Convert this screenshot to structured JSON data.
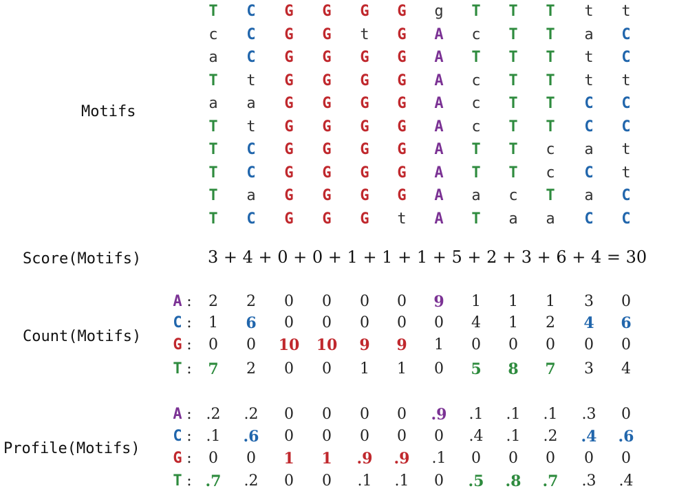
{
  "labels": {
    "motifs": "Motifs",
    "score": "Score(Motifs)",
    "count": "Count(Motifs)",
    "profile": "Profile(Motifs)"
  },
  "colors": {
    "A": "#7b3294",
    "C": "#2166ac",
    "G": "#c0282d",
    "T": "#2e8b3e",
    "plain": "#333333"
  },
  "motifs": [
    [
      "T",
      "C",
      "G",
      "G",
      "G",
      "G",
      "g",
      "T",
      "T",
      "T",
      "t",
      "t"
    ],
    [
      "c",
      "C",
      "G",
      "G",
      "t",
      "G",
      "A",
      "c",
      "T",
      "T",
      "a",
      "C"
    ],
    [
      "a",
      "C",
      "G",
      "G",
      "G",
      "G",
      "A",
      "T",
      "T",
      "T",
      "t",
      "C"
    ],
    [
      "T",
      "t",
      "G",
      "G",
      "G",
      "G",
      "A",
      "c",
      "T",
      "T",
      "t",
      "t"
    ],
    [
      "a",
      "a",
      "G",
      "G",
      "G",
      "G",
      "A",
      "c",
      "T",
      "T",
      "C",
      "C"
    ],
    [
      "T",
      "t",
      "G",
      "G",
      "G",
      "G",
      "A",
      "c",
      "T",
      "T",
      "C",
      "C"
    ],
    [
      "T",
      "C",
      "G",
      "G",
      "G",
      "G",
      "A",
      "T",
      "T",
      "c",
      "a",
      "t"
    ],
    [
      "T",
      "C",
      "G",
      "G",
      "G",
      "G",
      "A",
      "T",
      "T",
      "c",
      "C",
      "t"
    ],
    [
      "T",
      "a",
      "G",
      "G",
      "G",
      "G",
      "A",
      "a",
      "c",
      "T",
      "a",
      "C"
    ],
    [
      "T",
      "C",
      "G",
      "G",
      "G",
      "t",
      "A",
      "T",
      "a",
      "a",
      "C",
      "C"
    ]
  ],
  "score_equation": "3 + 4 + 0 + 0 + 1 + 1 + 1 + 5 + 2 + 3 + 6 + 4 = 30",
  "count": [
    {
      "base": "A",
      "values": [
        "2",
        "2",
        "0",
        "0",
        "0",
        "0",
        "9",
        "1",
        "1",
        "1",
        "3",
        "0"
      ],
      "bold": [
        6
      ]
    },
    {
      "base": "C",
      "values": [
        "1",
        "6",
        "0",
        "0",
        "0",
        "0",
        "0",
        "4",
        "1",
        "2",
        "4",
        "6"
      ],
      "bold": [
        1,
        10,
        11
      ]
    },
    {
      "base": "G",
      "values": [
        "0",
        "0",
        "10",
        "10",
        "9",
        "9",
        "1",
        "0",
        "0",
        "0",
        "0",
        "0"
      ],
      "bold": [
        2,
        3,
        4,
        5
      ]
    },
    {
      "base": "T",
      "values": [
        "7",
        "2",
        "0",
        "0",
        "1",
        "1",
        "0",
        "5",
        "8",
        "7",
        "3",
        "4"
      ],
      "bold": [
        0,
        7,
        8,
        9
      ]
    }
  ],
  "profile": [
    {
      "base": "A",
      "values": [
        ".2",
        ".2",
        "0",
        "0",
        "0",
        "0",
        ".9",
        ".1",
        ".1",
        ".1",
        ".3",
        "0"
      ],
      "bold": [
        6
      ]
    },
    {
      "base": "C",
      "values": [
        ".1",
        ".6",
        "0",
        "0",
        "0",
        "0",
        "0",
        ".4",
        ".1",
        ".2",
        ".4",
        ".6"
      ],
      "bold": [
        1,
        10,
        11
      ]
    },
    {
      "base": "G",
      "values": [
        "0",
        "0",
        "1",
        "1",
        ".9",
        ".9",
        ".1",
        "0",
        "0",
        "0",
        "0",
        "0"
      ],
      "bold": [
        2,
        3,
        4,
        5
      ]
    },
    {
      "base": "T",
      "values": [
        ".7",
        ".2",
        "0",
        "0",
        ".1",
        ".1",
        "0",
        ".5",
        ".8",
        ".7",
        ".3",
        ".4"
      ],
      "bold": [
        0,
        7,
        8,
        9
      ]
    }
  ]
}
